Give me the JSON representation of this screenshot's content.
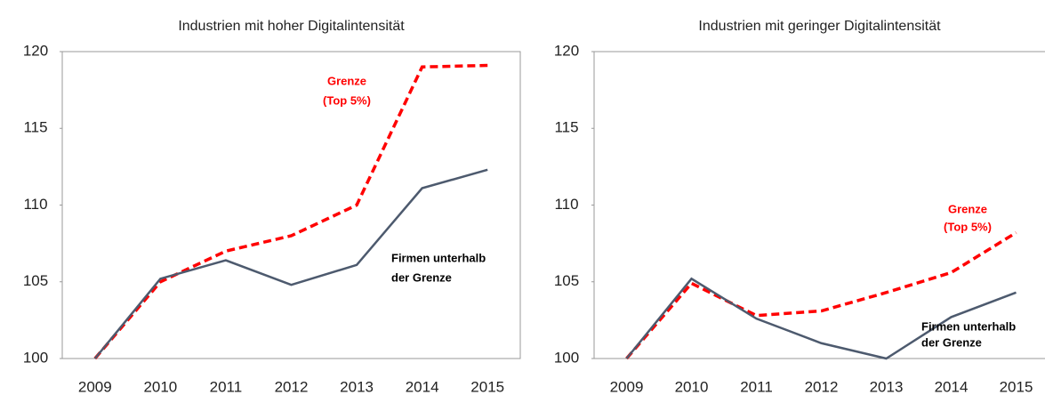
{
  "chart_data": [
    {
      "type": "line",
      "title": "Industrien mit hoher Digitalintensität",
      "categories": [
        "2009",
        "2010",
        "2011",
        "2012",
        "2013",
        "2014",
        "2015"
      ],
      "ylim": [
        100,
        120
      ],
      "yticks": [
        100,
        105,
        110,
        115,
        120
      ],
      "series": [
        {
          "color": "#ff0000",
          "dashed": true,
          "values": [
            100,
            105,
            107,
            108,
            110,
            119,
            119.1
          ]
        },
        {
          "color": "#4d5a6e",
          "dashed": false,
          "values": [
            100,
            105.2,
            106.4,
            104.8,
            106.1,
            111.1,
            112.3
          ]
        }
      ],
      "annotations": [
        {
          "lines": [
            "Grenze",
            "(Top 5%)"
          ],
          "color": "#ff0000"
        },
        {
          "lines": [
            "Firmen unterhalb",
            "der Grenze"
          ],
          "color": "#000000"
        }
      ]
    },
    {
      "type": "line",
      "title": "Industrien mit geringer Digitalintensität",
      "categories": [
        "2009",
        "2010",
        "2011",
        "2012",
        "2013",
        "2014",
        "2015"
      ],
      "ylim": [
        100,
        120
      ],
      "yticks": [
        100,
        105,
        110,
        115,
        120
      ],
      "series": [
        {
          "color": "#ff0000",
          "dashed": true,
          "values": [
            100,
            104.9,
            102.8,
            103.1,
            104.3,
            105.6,
            108.2
          ]
        },
        {
          "color": "#4d5a6e",
          "dashed": false,
          "values": [
            100,
            105.2,
            102.6,
            101,
            100,
            102.7,
            104.3
          ]
        }
      ],
      "annotations": [
        {
          "lines": [
            "Grenze",
            "(Top 5%)"
          ],
          "color": "#ff0000"
        },
        {
          "lines": [
            "Firmen unterhalb",
            "der Grenze"
          ],
          "color": "#000000"
        }
      ]
    }
  ]
}
